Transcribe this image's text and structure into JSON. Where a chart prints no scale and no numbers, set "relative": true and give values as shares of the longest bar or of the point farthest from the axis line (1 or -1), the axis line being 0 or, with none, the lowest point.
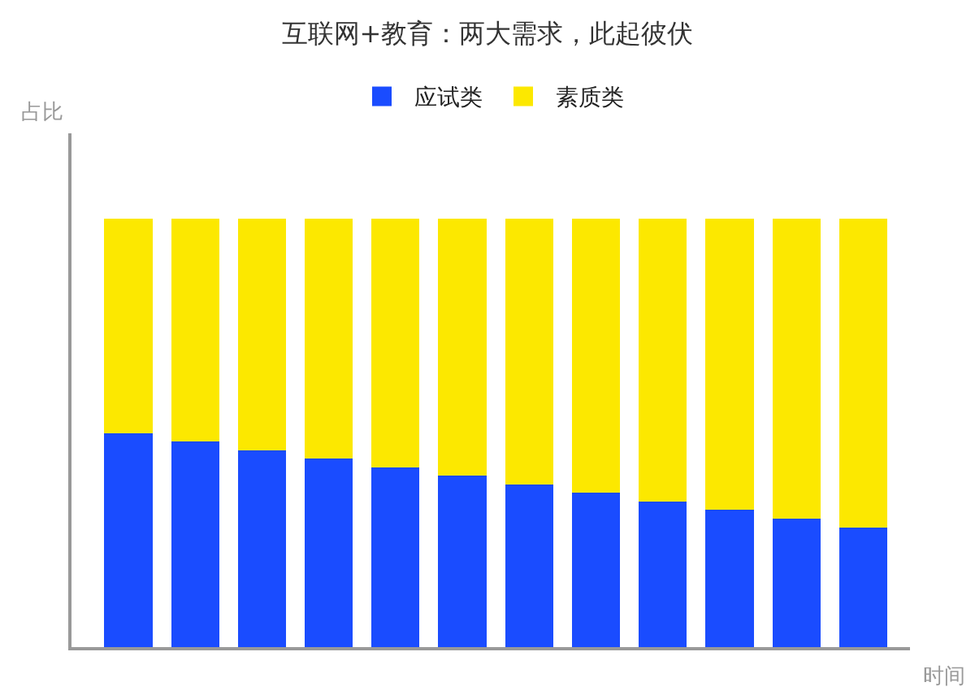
{
  "chart_data": {
    "type": "bar",
    "title": "互联网+教育：两大需求，此起彼伏",
    "xlabel": "时间",
    "ylabel": "占比",
    "relative": true,
    "stacked": true,
    "grid": false,
    "legend": "top",
    "categories": [
      null,
      null,
      null,
      null,
      null,
      null,
      null,
      null,
      null,
      null,
      null,
      null
    ],
    "series": [
      {
        "name": "应试类",
        "color": "#1a4cff",
        "values": [
          0.5,
          0.48,
          0.46,
          0.44,
          0.42,
          0.4,
          0.38,
          0.36,
          0.34,
          0.32,
          0.3,
          0.28
        ]
      },
      {
        "name": "素质类",
        "color": "#fce800",
        "values": [
          0.5,
          0.52,
          0.54,
          0.56,
          0.58,
          0.6,
          0.62,
          0.64,
          0.66,
          0.68,
          0.7,
          0.72
        ]
      }
    ]
  }
}
